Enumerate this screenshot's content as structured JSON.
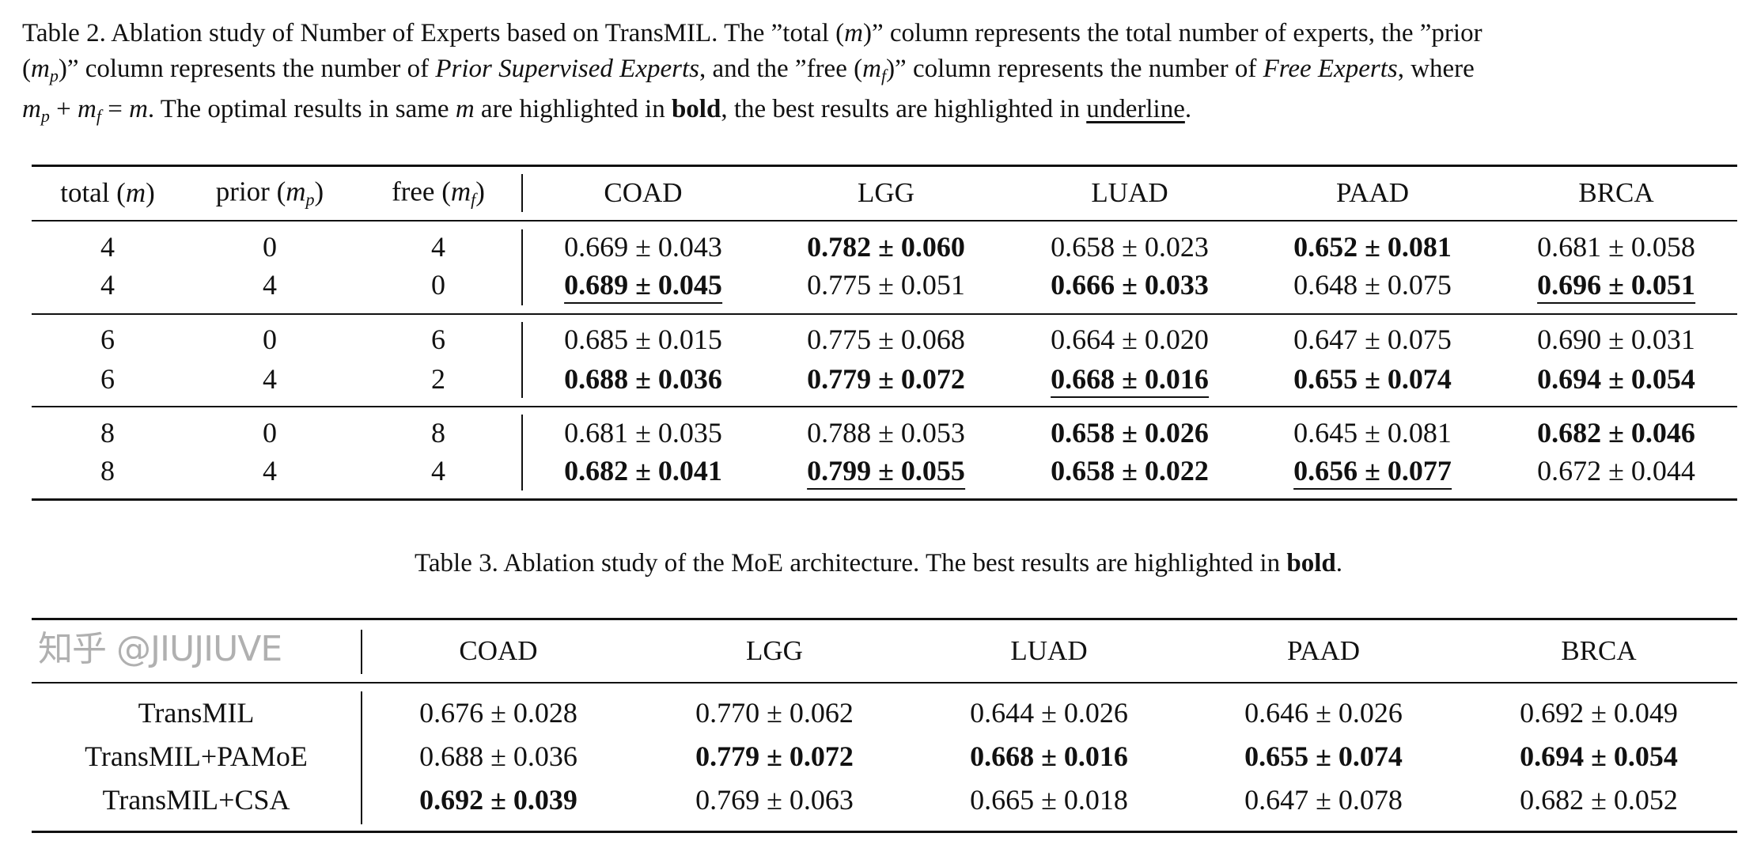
{
  "table2": {
    "caption_lines": [
      [
        {
          "t": "Table 2. Ablation study of Number of Experts based on TransMIL. The ”total ("
        },
        {
          "t": "m",
          "math": true
        },
        {
          "t": ")” column represents the total number of experts, the ”prior"
        }
      ],
      [
        {
          "t": "("
        },
        {
          "t": "m",
          "sub": "p",
          "math": true
        },
        {
          "t": ")” column represents the number of "
        },
        {
          "t": "Prior Supervised Experts",
          "i": true
        },
        {
          "t": ", and the ”free ("
        },
        {
          "t": "m",
          "sub": "f",
          "math": true
        },
        {
          "t": ")” column represents the number of "
        },
        {
          "t": "Free Experts",
          "i": true
        },
        {
          "t": ", where"
        }
      ],
      [
        {
          "t": "m",
          "sub": "p",
          "math": true
        },
        {
          "t": " + "
        },
        {
          "t": "m",
          "sub": "f",
          "math": true
        },
        {
          "t": " = "
        },
        {
          "t": "m",
          "math": true
        },
        {
          "t": ". The optimal results in same "
        },
        {
          "t": "m",
          "math": true
        },
        {
          "t": " are highlighted in "
        },
        {
          "t": "bold",
          "b": true
        },
        {
          "t": ", the best results are highlighted in "
        },
        {
          "t": "underline",
          "u": true
        },
        {
          "t": "."
        }
      ]
    ],
    "headers": [
      [
        {
          "t": "total ("
        },
        {
          "t": "m",
          "math": true
        },
        {
          "t": ")"
        }
      ],
      [
        {
          "t": "prior ("
        },
        {
          "t": "m",
          "sub": "p",
          "math": true
        },
        {
          "t": ")"
        }
      ],
      [
        {
          "t": "free ("
        },
        {
          "t": "m",
          "sub": "f",
          "math": true
        },
        {
          "t": ")"
        }
      ],
      [
        {
          "t": "COAD"
        }
      ],
      [
        {
          "t": "LGG"
        }
      ],
      [
        {
          "t": "LUAD"
        }
      ],
      [
        {
          "t": "PAAD"
        }
      ],
      [
        {
          "t": "BRCA"
        }
      ]
    ],
    "rows": [
      {
        "total": "4",
        "prior": "0",
        "free": "4",
        "cells": [
          {
            "v": "0.669 ± 0.043"
          },
          {
            "v": "0.782 ± 0.060",
            "b": true
          },
          {
            "v": "0.658 ± 0.023"
          },
          {
            "v": "0.652 ± 0.081",
            "b": true
          },
          {
            "v": "0.681 ± 0.058"
          }
        ]
      },
      {
        "total": "4",
        "prior": "4",
        "free": "0",
        "cells": [
          {
            "v": "0.689 ± 0.045",
            "b": true,
            "u": true
          },
          {
            "v": "0.775 ± 0.051"
          },
          {
            "v": "0.666 ± 0.033",
            "b": true
          },
          {
            "v": "0.648 ± 0.075"
          },
          {
            "v": "0.696 ± 0.051",
            "b": true,
            "u": true
          }
        ]
      },
      {
        "total": "6",
        "prior": "0",
        "free": "6",
        "cells": [
          {
            "v": "0.685 ± 0.015"
          },
          {
            "v": "0.775 ± 0.068"
          },
          {
            "v": "0.664 ± 0.020"
          },
          {
            "v": "0.647 ± 0.075"
          },
          {
            "v": "0.690 ± 0.031"
          }
        ]
      },
      {
        "total": "6",
        "prior": "4",
        "free": "2",
        "cells": [
          {
            "v": "0.688 ± 0.036",
            "b": true
          },
          {
            "v": "0.779 ± 0.072",
            "b": true
          },
          {
            "v": "0.668 ± 0.016",
            "b": true,
            "u": true
          },
          {
            "v": "0.655 ± 0.074",
            "b": true
          },
          {
            "v": "0.694 ± 0.054",
            "b": true
          }
        ]
      },
      {
        "total": "8",
        "prior": "0",
        "free": "8",
        "cells": [
          {
            "v": "0.681 ± 0.035"
          },
          {
            "v": "0.788 ± 0.053"
          },
          {
            "v": "0.658 ± 0.026",
            "b": true
          },
          {
            "v": "0.645 ± 0.081"
          },
          {
            "v": "0.682 ± 0.046",
            "b": true
          }
        ]
      },
      {
        "total": "8",
        "prior": "4",
        "free": "4",
        "cells": [
          {
            "v": "0.682 ± 0.041",
            "b": true
          },
          {
            "v": "0.799 ± 0.055",
            "b": true,
            "u": true
          },
          {
            "v": "0.658 ± 0.022",
            "b": true
          },
          {
            "v": "0.656 ± 0.077",
            "b": true,
            "u": true
          },
          {
            "v": "0.672 ± 0.044"
          }
        ]
      }
    ]
  },
  "table3": {
    "caption_lines": [
      [
        {
          "t": "Table 3. Ablation study of the MoE architecture. The best results are highlighted in "
        },
        {
          "t": "bold",
          "b": true
        },
        {
          "t": "."
        }
      ]
    ],
    "headers": [
      "COAD",
      "LGG",
      "LUAD",
      "PAAD",
      "BRCA"
    ],
    "rows": [
      {
        "label": "TransMIL",
        "cells": [
          {
            "v": "0.676 ± 0.028"
          },
          {
            "v": "0.770 ± 0.062"
          },
          {
            "v": "0.644 ± 0.026"
          },
          {
            "v": "0.646 ± 0.026"
          },
          {
            "v": "0.692 ± 0.049"
          }
        ]
      },
      {
        "label": "TransMIL+PAMoE",
        "cells": [
          {
            "v": "0.688 ± 0.036"
          },
          {
            "v": "0.779 ± 0.072",
            "b": true
          },
          {
            "v": "0.668 ± 0.016",
            "b": true
          },
          {
            "v": "0.655 ± 0.074",
            "b": true
          },
          {
            "v": "0.694 ± 0.054",
            "b": true
          }
        ]
      },
      {
        "label": "TransMIL+CSA",
        "cells": [
          {
            "v": "0.692 ± 0.039",
            "b": true
          },
          {
            "v": "0.769 ± 0.063"
          },
          {
            "v": "0.665 ± 0.018"
          },
          {
            "v": "0.647 ± 0.078"
          },
          {
            "v": "0.682 ± 0.052"
          }
        ]
      }
    ]
  },
  "watermark": "知乎 @JIUJIUVE"
}
